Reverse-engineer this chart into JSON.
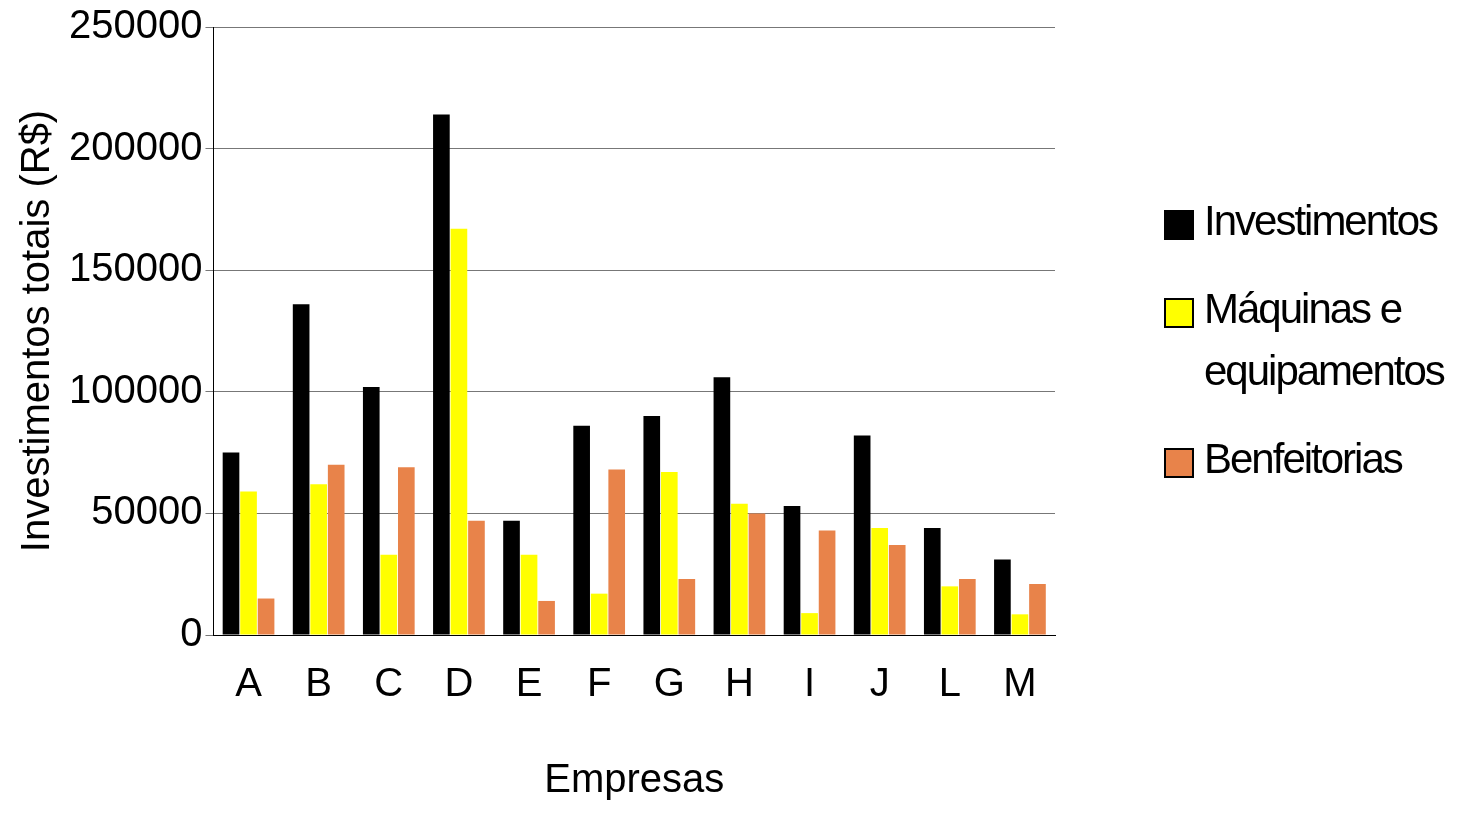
{
  "chart_data": {
    "type": "bar",
    "xlabel": "Empresas",
    "ylabel": "Investimentos totais (R$)",
    "categories": [
      "A",
      "B",
      "C",
      "D",
      "E",
      "F",
      "G",
      "H",
      "I",
      "J",
      "L",
      "M"
    ],
    "series": [
      {
        "name": "Investimentos",
        "color": "#000000",
        "values": [
          75000,
          136000,
          102000,
          214000,
          47000,
          86000,
          90000,
          106000,
          53000,
          82000,
          44000,
          31000
        ]
      },
      {
        "name": "Máquinas e equipamentos",
        "color": "#ffff00",
        "values": [
          59000,
          62000,
          33000,
          167000,
          33000,
          17000,
          67000,
          54000,
          9000,
          44000,
          20000,
          8500
        ]
      },
      {
        "name": "Benfeitorias",
        "color": "#e8834a",
        "values": [
          15000,
          70000,
          69000,
          47000,
          14000,
          68000,
          23000,
          50000,
          43000,
          37000,
          23000,
          21000
        ]
      }
    ],
    "ylim": [
      0,
      250000
    ],
    "yticks": [
      0,
      50000,
      100000,
      150000,
      200000,
      250000
    ],
    "grid": "y",
    "legend": "right"
  }
}
